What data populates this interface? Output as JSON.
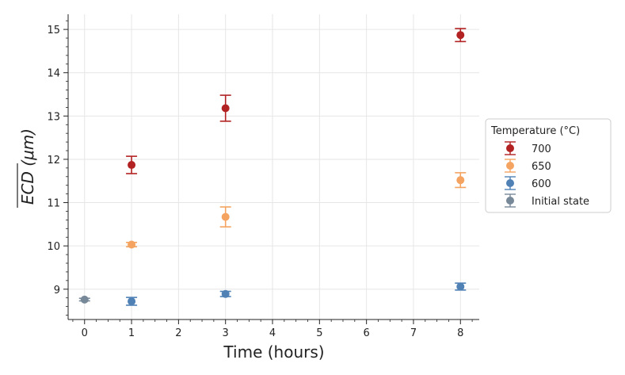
{
  "chart_data": {
    "type": "scatter",
    "xlabel": "Time (hours)",
    "ylabel": "ECD (μm)",
    "xlim": [
      -0.35,
      8.4
    ],
    "ylim": [
      8.3,
      15.35
    ],
    "xticks": [
      0,
      1,
      2,
      3,
      4,
      5,
      6,
      7,
      8
    ],
    "yticks": [
      9,
      10,
      11,
      12,
      13,
      14,
      15
    ],
    "grid": true,
    "legend": {
      "title": "Temperature (°C)",
      "placement": "right-outside",
      "order": [
        "700",
        "650",
        "600",
        "Initial state"
      ]
    },
    "series": [
      {
        "name": "700",
        "color": "#b22222",
        "points": [
          {
            "x": 1,
            "y": 11.87,
            "err": 0.2
          },
          {
            "x": 3,
            "y": 13.18,
            "err": 0.3
          },
          {
            "x": 8,
            "y": 14.87,
            "err": 0.15
          }
        ]
      },
      {
        "name": "650",
        "color": "#f4a460",
        "points": [
          {
            "x": 1,
            "y": 10.03,
            "err": 0.05
          },
          {
            "x": 3,
            "y": 10.67,
            "err": 0.23
          },
          {
            "x": 8,
            "y": 11.52,
            "err": 0.17
          }
        ]
      },
      {
        "name": "600",
        "color": "#4f81b5",
        "points": [
          {
            "x": 1,
            "y": 8.72,
            "err": 0.09
          },
          {
            "x": 3,
            "y": 8.89,
            "err": 0.06
          },
          {
            "x": 8,
            "y": 9.06,
            "err": 0.08
          }
        ]
      },
      {
        "name": "Initial state",
        "color": "#778899",
        "points": [
          {
            "x": 0,
            "y": 8.76,
            "err": 0.03
          }
        ]
      }
    ]
  }
}
